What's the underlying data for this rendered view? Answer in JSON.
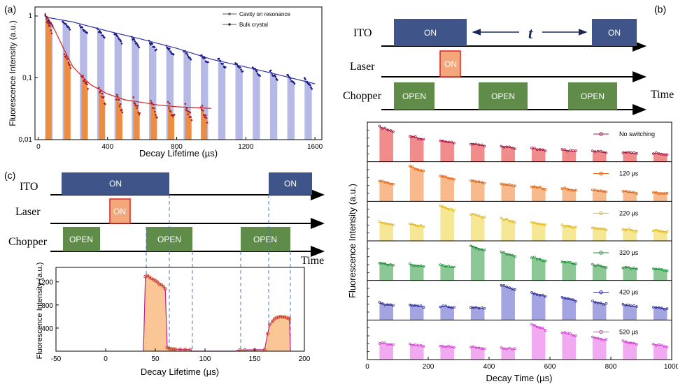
{
  "colors": {
    "ito": "#3f5589",
    "laser_fill": "#f4a77a",
    "laser_edge": "#e02020",
    "chopper": "#5f8c48",
    "orange": "#ee8a3a",
    "lavender": "#a9abe0",
    "blue_line": "#3333aa",
    "red_line": "#d02020",
    "axis": "#000000"
  },
  "chart_data": [
    {
      "id": "a",
      "panel_label": "(a)",
      "type": "bar",
      "xlabel": "Decay Lifetime (µs)",
      "ylabel": "Fluorescence Intensity (a.u.)",
      "xlim": [
        -20,
        1640
      ],
      "ylim": [
        0.01,
        1.4
      ],
      "yscale": "log",
      "xticks": [
        0,
        400,
        800,
        1200,
        1600
      ],
      "yticks": [
        {
          "v": 0.01,
          "label": "0,01"
        },
        {
          "v": 0.1,
          "label": "0,1"
        },
        {
          "v": 1,
          "label": "1"
        }
      ],
      "legend": [
        "Cavity on resonance",
        "Bulk crystal"
      ],
      "series": [
        {
          "name": "Bulk crystal",
          "color": "#a9abe0",
          "starts": [
            40,
            140,
            240,
            340,
            440,
            540,
            640,
            740,
            840,
            940,
            1040,
            1140,
            1240,
            1340,
            1440,
            1540
          ],
          "values": [
            0.96,
            0.83,
            0.71,
            0.61,
            0.52,
            0.45,
            0.39,
            0.33,
            0.28,
            0.24,
            0.205,
            0.175,
            0.15,
            0.13,
            0.11,
            0.096
          ],
          "width": 42
        },
        {
          "name": "Cavity on resonance",
          "color": "#ee8a3a",
          "starts": [
            40,
            150,
            250,
            350,
            450,
            550,
            650,
            750,
            850,
            940
          ],
          "values": [
            0.98,
            0.26,
            0.115,
            0.067,
            0.05,
            0.044,
            0.041,
            0.038,
            0.036,
            0.035
          ],
          "width": 36
        }
      ],
      "fit_lines": [
        {
          "name": "Bulk fit",
          "color": "#3333aa",
          "x": [
            50,
            200,
            400,
            600,
            800,
            1000,
            1200,
            1400,
            1600
          ],
          "y": [
            0.95,
            0.8,
            0.57,
            0.42,
            0.3,
            0.2,
            0.15,
            0.11,
            0.08
          ]
        },
        {
          "name": "Cavity fit",
          "color": "#d02020",
          "x": [
            50,
            100,
            150,
            200,
            300,
            400,
            500,
            600,
            700,
            800,
            900,
            1000
          ],
          "y": [
            1.0,
            0.55,
            0.28,
            0.15,
            0.078,
            0.055,
            0.044,
            0.04,
            0.036,
            0.034,
            0.033,
            0.032
          ]
        }
      ]
    },
    {
      "id": "b-traces",
      "type": "bar",
      "xlabel": "Decay Time (µs)",
      "ylabel": "Fluorescence Intensity (a.u.)",
      "xlim": [
        0,
        1000
      ],
      "xticks": [
        0,
        200,
        400,
        600,
        800,
        1000
      ],
      "starts": [
        40,
        140,
        240,
        340,
        440,
        540,
        640,
        740,
        840,
        940
      ],
      "width": 45,
      "series": [
        {
          "name": "No switching",
          "color": "#f08080",
          "mark": "#a01840",
          "values": [
            1.0,
            0.52,
            0.34,
            0.24,
            0.17,
            0.12,
            0.09,
            0.07,
            0.055,
            0.045
          ]
        },
        {
          "name": "120 µs",
          "color": "#f7b380",
          "mark": "#e06010",
          "values": [
            0.3,
            1.0,
            0.5,
            0.33,
            0.22,
            0.15,
            0.11,
            0.08,
            0.06,
            0.05
          ]
        },
        {
          "name": "220 µs",
          "color": "#f5e48a",
          "mark": "#e0b820",
          "values": [
            0.25,
            0.2,
            1.0,
            0.56,
            0.37,
            0.25,
            0.17,
            0.12,
            0.09,
            0.07
          ]
        },
        {
          "name": "320 µs",
          "color": "#7fc28a",
          "mark": "#1f8a3a",
          "values": [
            0.22,
            0.18,
            0.15,
            1.0,
            0.62,
            0.4,
            0.26,
            0.17,
            0.12,
            0.09
          ]
        },
        {
          "name": "420 µs",
          "color": "#9a9ae0",
          "mark": "#2a2a90",
          "values": [
            0.2,
            0.16,
            0.13,
            0.11,
            1.0,
            0.58,
            0.38,
            0.24,
            0.16,
            0.11
          ]
        },
        {
          "name": "520 µs",
          "color": "#f0a0f0",
          "mark": "#d040d0",
          "values": [
            0.2,
            0.16,
            0.13,
            0.11,
            0.09,
            1.0,
            0.58,
            0.38,
            0.24,
            0.16
          ]
        }
      ]
    },
    {
      "id": "c-plot",
      "type": "area",
      "xlabel": "Decay Lifetime (µs)",
      "ylabel": "Fluorescence Intensity (a.u.)",
      "xlim": [
        -50,
        200
      ],
      "ylim": [
        0,
        1450
      ],
      "xticks": [
        -50,
        0,
        50,
        100,
        150,
        200
      ],
      "yticks": [
        400,
        800,
        1200
      ],
      "x": [
        38,
        40,
        42,
        44,
        46,
        48,
        50,
        52,
        54,
        56,
        58,
        60,
        62,
        64,
        66,
        68,
        70,
        75,
        80,
        85,
        86,
        130,
        135,
        140,
        150,
        160,
        163,
        165,
        168,
        170,
        172,
        174,
        176,
        178,
        180,
        182,
        184,
        185,
        186
      ],
      "y": [
        0,
        1290,
        1310,
        1280,
        1260,
        1240,
        1220,
        1200,
        1160,
        1150,
        1120,
        1080,
        60,
        45,
        40,
        38,
        36,
        32,
        30,
        28,
        0,
        0,
        20,
        22,
        25,
        28,
        300,
        460,
        520,
        560,
        580,
        590,
        600,
        590,
        595,
        580,
        570,
        560,
        0
      ]
    }
  ],
  "panel_b": {
    "label": "(b)",
    "ito_label": "ITO",
    "laser_label": "Laser",
    "chopper_label": "Chopper",
    "time_label": "Time",
    "on_text": "ON",
    "open_text": "OPEN",
    "delay_symbol": "t"
  },
  "panel_c": {
    "label": "(c)",
    "ito_label": "ITO",
    "laser_label": "Laser",
    "chopper_label": "Chopper",
    "time_label": "Time",
    "on_text": "ON",
    "open_text": "OPEN"
  }
}
